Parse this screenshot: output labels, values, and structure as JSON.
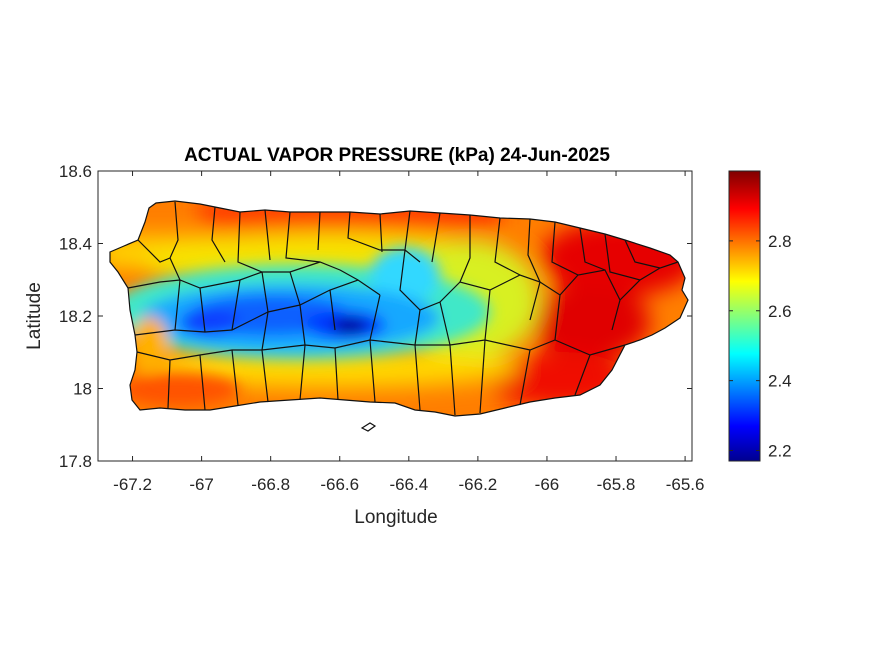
{
  "figure": {
    "title": "ACTUAL VAPOR PRESSURE (kPa) 24-Jun-2025",
    "xlabel": "Longitude",
    "ylabel": "Latitude"
  },
  "axes": {
    "xlim": [
      -67.3,
      -65.58
    ],
    "ylim": [
      17.8,
      18.6
    ],
    "xticks": [
      -67.2,
      -67,
      -66.8,
      -66.6,
      -66.4,
      -66.2,
      -66,
      -65.8,
      -65.6
    ],
    "yticks": [
      17.8,
      18,
      18.2,
      18.4,
      18.6
    ],
    "xtick_labels": [
      "-67.2",
      "-67",
      "-66.8",
      "-66.6",
      "-66.4",
      "-66.2",
      "-66",
      "-65.8",
      "-65.6"
    ],
    "ytick_labels": [
      "17.8",
      "18",
      "18.2",
      "18.4",
      "18.6"
    ]
  },
  "colorbar": {
    "colormap": "jet",
    "range": [
      2.17,
      3.0
    ],
    "ticks": [
      2.2,
      2.4,
      2.6,
      2.8
    ],
    "tick_labels": [
      "2.2",
      "2.4",
      "2.6",
      "2.8"
    ],
    "colors": [
      "#00008f",
      "#0000ff",
      "#00ffff",
      "#ffff00",
      "#ff0000",
      "#800000"
    ]
  },
  "map_data": {
    "region": "Puerto Rico municipalities",
    "variable": "actual vapor pressure",
    "units": "kPa",
    "low_zone": "central mountains, minimum about 2.2 near -66.6, 18.17",
    "high_zones": "east and southeast coast, north coast, southwest coast, about 2.9-3.0"
  }
}
